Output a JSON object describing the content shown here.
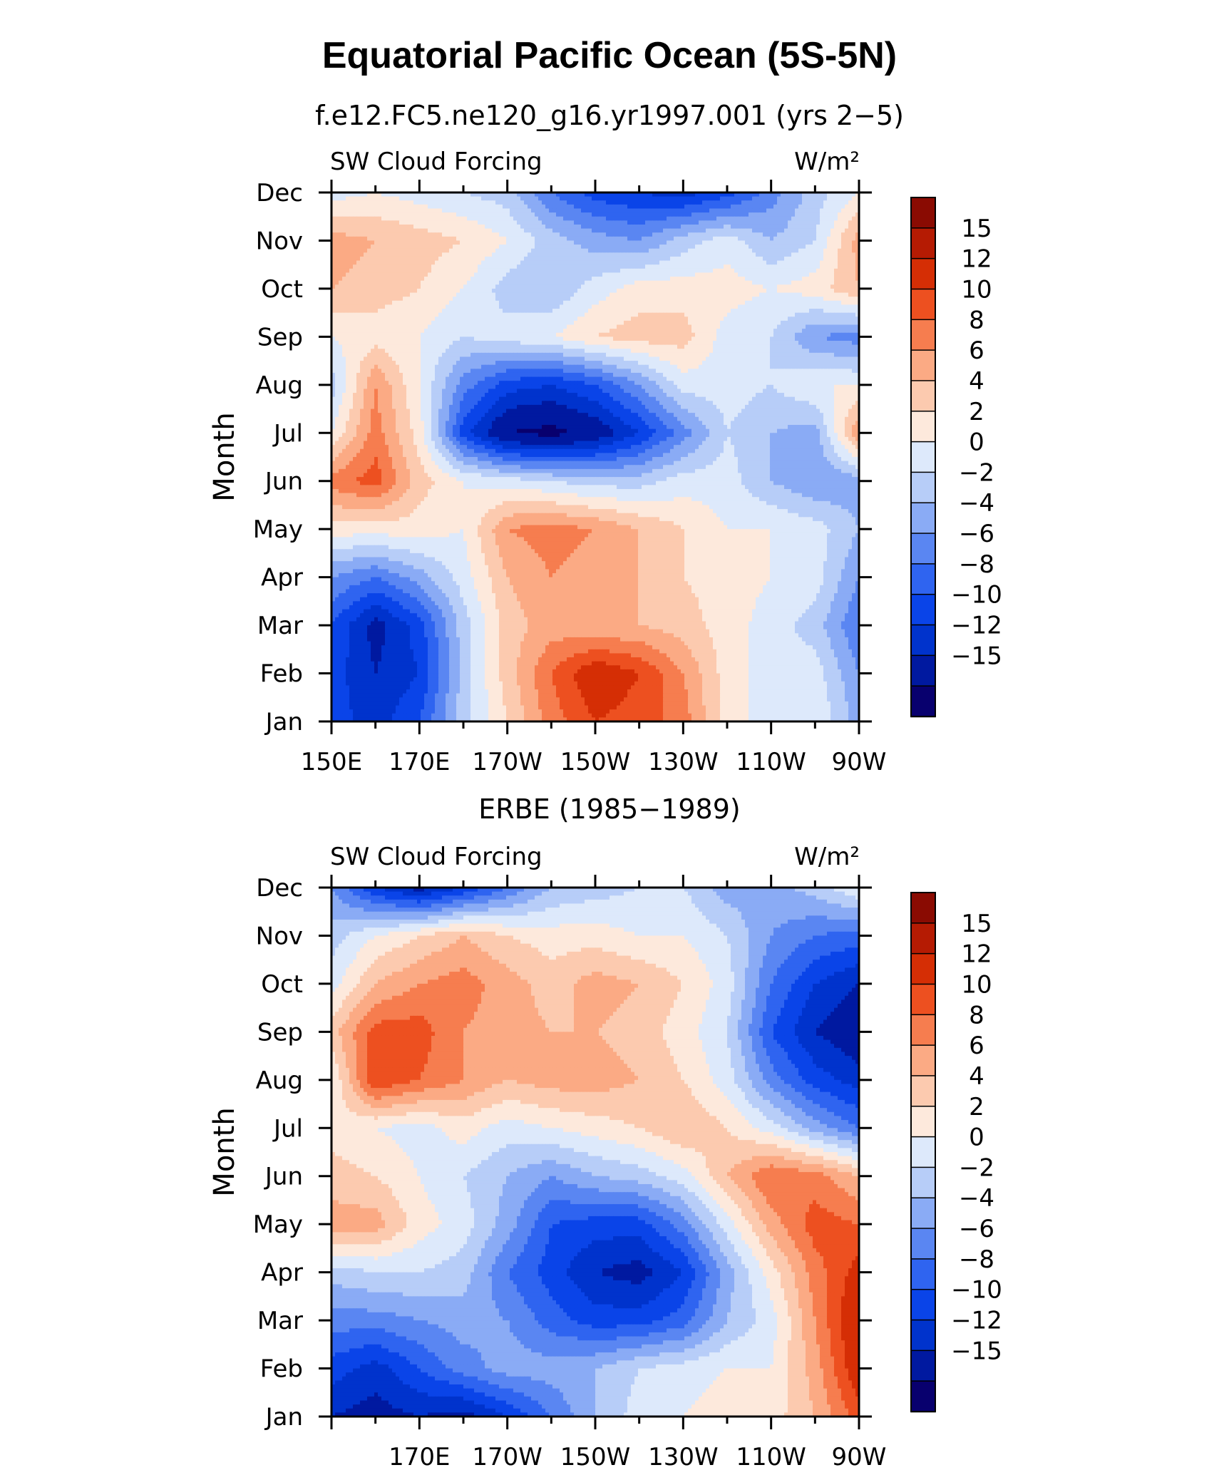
{
  "figure": {
    "title": "Equatorial Pacific Ocean (5S-5N)"
  },
  "chart_data": [
    {
      "type": "heatmap",
      "title": "f.e12.FC5.ne120_g16.yr1997.001 (yrs 2−5)",
      "left_string": "SW Cloud Forcing",
      "right_string": "W/m²",
      "ylabel": "Month",
      "xlabel": "",
      "x_values": [
        150,
        160,
        170,
        180,
        190,
        200,
        210,
        220,
        230,
        240,
        250,
        260,
        270
      ],
      "x_tick_labels": [
        "150E",
        "170E",
        "170W",
        "150W",
        "130W",
        "110W",
        "90W"
      ],
      "x_tick_values": [
        150,
        170,
        190,
        210,
        230,
        250,
        270
      ],
      "y_tick_labels": [
        "Jan",
        "Feb",
        "Mar",
        "Apr",
        "May",
        "Jun",
        "Jul",
        "Aug",
        "Sep",
        "Oct",
        "Nov",
        "Dec"
      ],
      "z": [
        [
          -9,
          -11,
          -8,
          -1,
          4,
          9,
          12,
          11,
          9,
          3,
          1,
          2,
          -3
        ],
        [
          -9,
          -12,
          -10,
          -1,
          5,
          10,
          14,
          12,
          8,
          3,
          1,
          1,
          -4
        ],
        [
          -8,
          -13,
          -9,
          -1,
          5,
          7,
          6,
          6,
          5,
          3,
          1,
          -1,
          -6
        ],
        [
          -4,
          -6,
          -3,
          1,
          6,
          8,
          7,
          6,
          4,
          3,
          2,
          1,
          -4
        ],
        [
          3,
          3,
          3,
          2,
          8,
          9,
          8,
          6,
          4,
          2,
          2,
          1,
          -2
        ],
        [
          9,
          11,
          5,
          2,
          1,
          0,
          -1,
          -1,
          1,
          1,
          -2,
          -4,
          -3
        ],
        [
          2,
          9,
          3,
          -9,
          -15,
          -16,
          -14,
          -10,
          -5,
          0,
          -2,
          -3,
          8
        ],
        [
          -1,
          8,
          2,
          -5,
          -9,
          -10,
          -8,
          -4,
          1,
          1,
          0,
          2,
          2
        ],
        [
          2,
          3,
          2,
          0,
          1,
          2,
          4,
          5,
          5,
          1,
          0,
          -4,
          -5
        ],
        [
          6,
          5,
          4,
          2,
          -1,
          -2,
          1,
          3,
          3,
          3,
          2,
          3,
          6
        ],
        [
          7,
          6,
          5,
          4,
          2,
          -1,
          -3,
          -4,
          -1,
          1,
          -2,
          0,
          7
        ],
        [
          1,
          2,
          1,
          0,
          -1,
          -6,
          -9,
          -10,
          -11,
          -9,
          -5,
          -1,
          2
        ]
      ],
      "contour_levels": [
        -15,
        -12,
        -10,
        -8,
        -6,
        -4,
        -2,
        0,
        2,
        4,
        6,
        8,
        10,
        12,
        15
      ],
      "colorbar_labels": [
        "15",
        "12",
        "10",
        "8",
        "6",
        "4",
        "2",
        "0",
        "−2",
        "−4",
        "−6",
        "−8",
        "−10",
        "−12",
        "−15"
      ],
      "colormap": [
        "#08006e",
        "#0019a0",
        "#0033cc",
        "#0a44e8",
        "#2f64f0",
        "#5a86f2",
        "#8aabf5",
        "#b7cdf8",
        "#dde9fb",
        "#fde9dc",
        "#fccaaf",
        "#fbaa84",
        "#f67d4f",
        "#ed5020",
        "#d52e05",
        "#b51b03",
        "#8a0b02"
      ]
    },
    {
      "type": "heatmap",
      "title": "ERBE (1985−1989)",
      "left_string": "SW Cloud Forcing",
      "right_string": "W/m²",
      "ylabel": "Month",
      "xlabel": "",
      "x_values": [
        150,
        160,
        170,
        180,
        190,
        200,
        210,
        220,
        230,
        240,
        250,
        260,
        270
      ],
      "x_tick_labels": [
        "170E",
        "170W",
        "150W",
        "130W",
        "110W",
        "90W"
      ],
      "x_tick_values": [
        170,
        190,
        210,
        230,
        250,
        270
      ],
      "y_tick_labels": [
        "Jan",
        "Feb",
        "Mar",
        "Apr",
        "May",
        "Jun",
        "Jul",
        "Aug",
        "Sep",
        "Oct",
        "Nov",
        "Dec"
      ],
      "z": [
        [
          -12,
          -13,
          -12,
          -13,
          -10,
          -6,
          -2,
          1,
          2,
          3,
          3,
          6,
          11
        ],
        [
          -9,
          -11,
          -8,
          -5,
          -3,
          -3,
          -2,
          0,
          1,
          2,
          2,
          7,
          14
        ],
        [
          -5,
          -5,
          -4,
          -3,
          -4,
          -7,
          -9,
          -9,
          -7,
          -2,
          1,
          8,
          15
        ],
        [
          -1,
          0,
          0,
          -1,
          -6,
          -9,
          -12,
          -13,
          -10,
          -3,
          3,
          9,
          13
        ],
        [
          7,
          7,
          3,
          1,
          -3,
          -8,
          -9,
          -9,
          -5,
          1,
          7,
          11,
          10
        ],
        [
          5,
          4,
          2,
          0,
          -2,
          -4,
          -2,
          -1,
          1,
          6,
          10,
          9,
          6
        ],
        [
          3,
          2,
          1,
          3,
          1,
          2,
          3,
          4,
          6,
          4,
          1,
          -3,
          -6
        ],
        [
          2,
          12,
          10,
          8,
          6,
          7,
          7,
          6,
          4,
          1,
          -5,
          -9,
          -11
        ],
        [
          5,
          11,
          11,
          8,
          7,
          6,
          6,
          5,
          3,
          0,
          -8,
          -12,
          -14
        ],
        [
          1,
          6,
          8,
          9,
          7,
          5,
          7,
          6,
          4,
          1,
          -6,
          -10,
          -12
        ],
        [
          -1,
          2,
          4,
          6,
          4,
          3,
          3,
          2,
          2,
          0,
          -4,
          -6,
          -7
        ],
        [
          -4,
          -10,
          -13,
          -10,
          -6,
          -2,
          -1,
          0,
          0,
          -3,
          -3,
          -1,
          2
        ]
      ],
      "contour_levels": [
        -15,
        -12,
        -10,
        -8,
        -6,
        -4,
        -2,
        0,
        2,
        4,
        6,
        8,
        10,
        12,
        15
      ],
      "colorbar_labels": [
        "15",
        "12",
        "10",
        "8",
        "6",
        "4",
        "2",
        "0",
        "−2",
        "−4",
        "−6",
        "−8",
        "−10",
        "−12",
        "−15"
      ],
      "colormap": [
        "#08006e",
        "#0019a0",
        "#0033cc",
        "#0a44e8",
        "#2f64f0",
        "#5a86f2",
        "#8aabf5",
        "#b7cdf8",
        "#dde9fb",
        "#fde9dc",
        "#fccaaf",
        "#fbaa84",
        "#f67d4f",
        "#ed5020",
        "#d52e05",
        "#b51b03",
        "#8a0b02"
      ]
    }
  ]
}
